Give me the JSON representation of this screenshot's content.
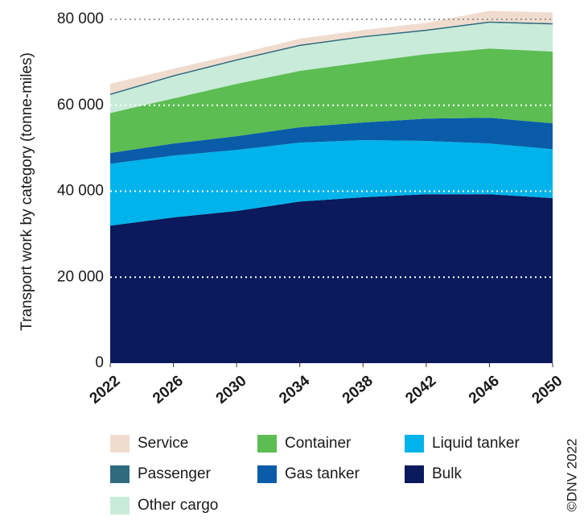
{
  "chart_data": {
    "type": "stacked-area",
    "y_label": "Transport work by category (tonne-miles)",
    "credit": "©DNV 2022",
    "x": [
      2022,
      2026,
      2030,
      2034,
      2038,
      2042,
      2046,
      2050
    ],
    "xlim": [
      2022,
      2050
    ],
    "xticks": [
      2022,
      2026,
      2030,
      2034,
      2038,
      2042,
      2046,
      2050
    ],
    "ylim": [
      0,
      80000
    ],
    "yticks": [
      0,
      {
        "value": 20000,
        "label": "20 000"
      },
      {
        "value": 40000,
        "label": "40 000"
      },
      {
        "value": 60000,
        "label": "60 000"
      },
      {
        "value": 80000,
        "label": "80 000"
      }
    ],
    "grid": true,
    "series": [
      {
        "name": "Bulk",
        "color": "#0a1a5c",
        "values": [
          32000,
          33900,
          35400,
          37600,
          38600,
          39300,
          39300,
          38400
        ]
      },
      {
        "name": "Liquid tanker",
        "color": "#00b3ea",
        "values": [
          14400,
          14400,
          14200,
          13700,
          13300,
          12400,
          11800,
          11400
        ]
      },
      {
        "name": "Gas tanker",
        "color": "#0a5ca8",
        "values": [
          2500,
          2800,
          3200,
          3600,
          4100,
          5200,
          6000,
          6000
        ]
      },
      {
        "name": "Container",
        "color": "#5cbd52",
        "values": [
          9300,
          10500,
          12200,
          13100,
          14000,
          15000,
          16100,
          16700
        ]
      },
      {
        "name": "Other cargo",
        "color": "#c9ebd9",
        "values": [
          4200,
          5100,
          5400,
          5800,
          5800,
          5400,
          6000,
          6300
        ]
      },
      {
        "name": "Passenger",
        "color": "#2e6b7e",
        "values": [
          300,
          300,
          300,
          300,
          300,
          300,
          300,
          300
        ]
      },
      {
        "name": "Service",
        "color": "#f0dccf",
        "values": [
          2300,
          1500,
          1200,
          1400,
          1400,
          1600,
          2500,
          2500
        ]
      }
    ]
  }
}
